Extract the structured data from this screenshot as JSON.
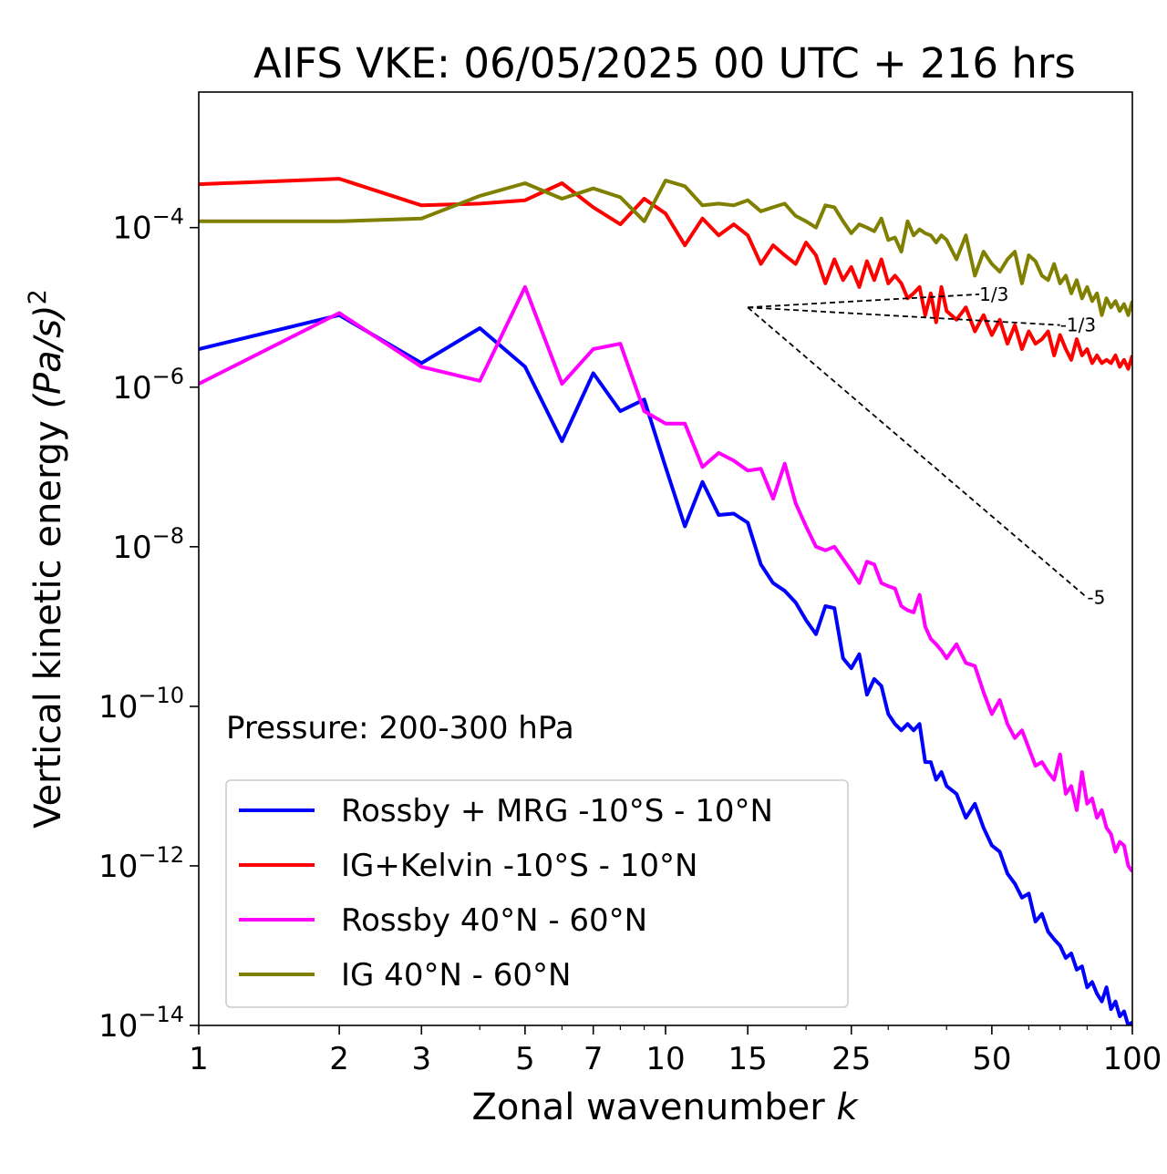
{
  "chart_data": {
    "type": "line",
    "title": "AIFS VKE: 06/05/2025 00 UTC + 216 hrs",
    "xlabel": "Zonal wavenumber ",
    "xlabel_italic": "k",
    "ylabel": "Vertical kinetic energy ",
    "ylabel_unit": "(Pa/s)",
    "ylabel_exp": "2",
    "x_scale": "log",
    "y_scale": "log",
    "xlim": [
      1,
      100
    ],
    "ylim": [
      1e-14,
      0.005
    ],
    "x_ticks": [
      1,
      2,
      3,
      5,
      7,
      10,
      15,
      25,
      50,
      100
    ],
    "x_tick_labels": [
      "1",
      "2",
      "3",
      "5",
      "7",
      "10",
      "15",
      "25",
      "50",
      "100"
    ],
    "y_ticks": [
      1e-14,
      1e-12,
      1e-10,
      1e-08,
      1e-06,
      0.0001
    ],
    "y_tick_exponents": [
      "−14",
      "−12",
      "−10",
      "−8",
      "−6",
      "−4"
    ],
    "y_tick_base": "10",
    "annotation": "Pressure: 200-300 hPa",
    "legend_position": "lower-left",
    "series": [
      {
        "name": "Rossby + MRG -10°S - 10°N",
        "color": "#0000ff",
        "x": [
          1,
          2,
          3,
          4,
          5,
          6,
          7,
          8,
          9,
          10,
          11,
          12,
          13,
          14,
          15,
          16,
          17,
          18,
          19,
          20,
          21,
          22,
          23,
          24,
          25,
          26,
          27,
          28,
          29,
          30,
          31,
          32,
          33,
          34,
          35,
          36,
          37,
          38,
          39,
          40,
          42,
          44,
          46,
          48,
          50,
          52,
          54,
          56,
          58,
          60,
          62,
          64,
          66,
          68,
          70,
          72,
          74,
          76,
          78,
          80,
          82,
          84,
          86,
          88,
          90,
          92,
          94,
          96,
          98,
          100
        ],
        "y": [
          3e-06,
          8e-06,
          2e-06,
          5.5e-06,
          1.8e-06,
          2.1e-07,
          1.5e-06,
          5e-07,
          7e-07,
          1e-07,
          1.8e-08,
          6.5e-08,
          2.5e-08,
          2.6e-08,
          2e-08,
          6e-09,
          3.5e-09,
          2.8e-09,
          2e-09,
          1.2e-09,
          8e-10,
          1.8e-09,
          1.7e-09,
          4e-10,
          3e-10,
          4.5e-10,
          1.4e-10,
          2.2e-10,
          1.8e-10,
          8e-11,
          6e-11,
          5e-11,
          6e-11,
          5e-11,
          6e-11,
          2e-11,
          2e-11,
          1.2e-11,
          1.5e-11,
          1e-11,
          8e-12,
          4e-12,
          6e-12,
          3e-12,
          1.8e-12,
          1.5e-12,
          8e-13,
          6e-13,
          4e-13,
          4.5e-13,
          2e-13,
          2.5e-13,
          1.5e-13,
          1.2e-13,
          1e-13,
          7e-14,
          8e-14,
          5e-14,
          5.5e-14,
          3e-14,
          3.5e-14,
          2.5e-14,
          2e-14,
          3e-14,
          1.6e-14,
          2e-14,
          1.3e-14,
          1.5e-14,
          1e-14,
          1.1e-14
        ]
      },
      {
        "name": "IG+Kelvin -10°S - 10°N",
        "color": "#ff0000",
        "x": [
          1,
          2,
          3,
          4,
          5,
          6,
          7,
          8,
          9,
          10,
          11,
          12,
          13,
          14,
          15,
          16,
          17,
          18,
          19,
          20,
          21,
          22,
          23,
          24,
          25,
          26,
          27,
          28,
          29,
          30,
          31,
          32,
          33,
          34,
          35,
          36,
          37,
          38,
          39,
          40,
          42,
          44,
          46,
          48,
          50,
          52,
          54,
          56,
          58,
          60,
          62,
          64,
          66,
          68,
          70,
          72,
          74,
          76,
          78,
          80,
          82,
          84,
          86,
          88,
          90,
          92,
          94,
          96,
          98,
          100
        ],
        "y": [
          0.00035,
          0.00041,
          0.00019,
          0.0002,
          0.00022,
          0.00036,
          0.00018,
          0.00011,
          0.00023,
          0.00015,
          6e-05,
          0.00013,
          8e-05,
          0.00011,
          8e-05,
          3.5e-05,
          6e-05,
          4.5e-05,
          3.5e-05,
          6.5e-05,
          4.5e-05,
          2e-05,
          4e-05,
          2.2e-05,
          3.2e-05,
          1.8e-05,
          3.8e-05,
          2.2e-05,
          4e-05,
          2e-05,
          2.5e-05,
          2e-05,
          1.3e-05,
          1.5e-05,
          1.8e-05,
          8e-06,
          1.5e-05,
          6.5e-06,
          1.8e-05,
          9e-06,
          7e-06,
          1e-05,
          5e-06,
          8e-06,
          4.5e-06,
          7e-06,
          3.5e-06,
          6e-06,
          3e-06,
          5e-06,
          3.5e-06,
          4e-06,
          5e-06,
          2.5e-06,
          4.5e-06,
          3e-06,
          2.2e-06,
          4e-06,
          2.5e-06,
          3e-06,
          2e-06,
          2.5e-06,
          2e-06,
          2.2e-06,
          2e-06,
          2.5e-06,
          1.8e-06,
          2.2e-06,
          1.7e-06,
          2.5e-06
        ]
      },
      {
        "name": "Rossby 40°N - 60°N",
        "color": "#ff00ff",
        "x": [
          1,
          2,
          3,
          4,
          5,
          6,
          7,
          8,
          9,
          10,
          11,
          12,
          13,
          14,
          15,
          16,
          17,
          18,
          19,
          20,
          21,
          22,
          23,
          24,
          25,
          26,
          27,
          28,
          29,
          30,
          31,
          32,
          33,
          34,
          35,
          36,
          37,
          38,
          39,
          40,
          42,
          44,
          46,
          48,
          50,
          52,
          54,
          56,
          58,
          60,
          62,
          64,
          66,
          68,
          70,
          72,
          74,
          76,
          78,
          80,
          82,
          84,
          86,
          88,
          90,
          92,
          94,
          96,
          98,
          100
        ],
        "y": [
          1.1e-06,
          8.5e-06,
          1.8e-06,
          1.2e-06,
          1.8e-05,
          1.1e-06,
          3e-06,
          3.5e-06,
          5e-07,
          3.5e-07,
          3.5e-07,
          1e-07,
          1.5e-07,
          1.2e-07,
          9e-08,
          9.5e-08,
          4e-08,
          1.1e-07,
          3.5e-08,
          1.8e-08,
          1e-08,
          9e-09,
          1e-08,
          7e-09,
          5e-09,
          3.5e-09,
          6.5e-09,
          6e-09,
          3.5e-09,
          3.2e-09,
          3e-09,
          1.8e-09,
          1.6e-09,
          1.5e-09,
          2.5e-09,
          1e-09,
          7e-10,
          6e-10,
          5e-10,
          4e-10,
          6e-10,
          3.5e-10,
          3.2e-10,
          1.5e-10,
          8e-11,
          1.2e-10,
          6e-11,
          4e-11,
          5e-11,
          3e-11,
          1.8e-11,
          2e-11,
          1.5e-11,
          1.2e-11,
          2.5e-11,
          8e-12,
          1e-11,
          5e-12,
          1.5e-11,
          6e-12,
          7e-12,
          4e-12,
          5e-12,
          3e-12,
          2.5e-12,
          1.5e-12,
          2e-12,
          1.8e-12,
          1e-12,
          8.5e-13
        ]
      },
      {
        "name": "IG 40°N - 60°N",
        "color": "#808000",
        "x": [
          1,
          2,
          3,
          4,
          5,
          6,
          7,
          8,
          9,
          10,
          11,
          12,
          13,
          14,
          15,
          16,
          17,
          18,
          19,
          20,
          21,
          22,
          23,
          24,
          25,
          26,
          27,
          28,
          29,
          30,
          31,
          32,
          33,
          34,
          35,
          36,
          37,
          38,
          39,
          40,
          42,
          44,
          46,
          48,
          50,
          52,
          54,
          56,
          58,
          60,
          62,
          64,
          66,
          68,
          70,
          72,
          74,
          76,
          78,
          80,
          82,
          84,
          86,
          88,
          90,
          92,
          94,
          96,
          98,
          100
        ],
        "y": [
          0.00012,
          0.00012,
          0.00013,
          0.00025,
          0.00036,
          0.00023,
          0.00031,
          0.00024,
          0.00012,
          0.00039,
          0.00033,
          0.00019,
          0.0002,
          0.00019,
          0.00022,
          0.00016,
          0.00018,
          0.0002,
          0.00014,
          0.00012,
          0.0001,
          0.00019,
          0.00018,
          0.00012,
          8.5e-05,
          0.00011,
          0.0001,
          9e-05,
          0.00013,
          7e-05,
          7.5e-05,
          5e-05,
          0.00012,
          8e-05,
          9.5e-05,
          8.5e-05,
          8e-05,
          6.5e-05,
          8e-05,
          7e-05,
          4e-05,
          8e-05,
          2.5e-05,
          5e-05,
          3.5e-05,
          2.8e-05,
          4e-05,
          5e-05,
          2e-05,
          4.5e-05,
          3.8e-05,
          2.5e-05,
          2.2e-05,
          3.5e-05,
          2e-05,
          2.5e-05,
          1.5e-05,
          2.2e-05,
          1.3e-05,
          1.8e-05,
          1.2e-05,
          1.5e-05,
          8e-06,
          1.3e-05,
          1e-05,
          1.2e-05,
          9e-06,
          1.1e-05,
          8e-06,
          1.2e-05
        ]
      }
    ],
    "slope_lines": [
      {
        "label": "1/3",
        "x": [
          15,
          47
        ],
        "y": [
          1e-05,
          1.46e-05
        ]
      },
      {
        "label": "-1/3",
        "x": [
          15,
          70
        ],
        "y": [
          1e-05,
          6e-06
        ]
      },
      {
        "label": "-5",
        "x": [
          15,
          80
        ],
        "y": [
          1e-05,
          2.3e-09
        ]
      }
    ]
  }
}
